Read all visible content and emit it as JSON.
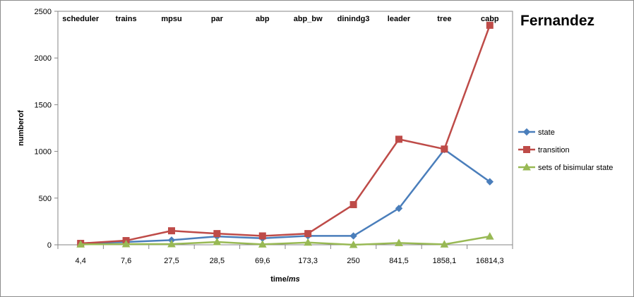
{
  "chart_data": {
    "type": "line",
    "title": "Fernandez",
    "xlabel_main": "time/",
    "xlabel_unit": "ms",
    "ylabel": "numberof",
    "categories": [
      "4,4",
      "7,6",
      "27,5",
      "28,5",
      "69,6",
      "173,3",
      "250",
      "841,5",
      "1858,1",
      "16814,3"
    ],
    "top_labels": [
      "scheduler",
      "trains",
      "mpsu",
      "par",
      "abp",
      "abp_bw",
      "dinindg3",
      "leader",
      "tree",
      "cabp"
    ],
    "ylim": [
      0,
      2500
    ],
    "yticks": [
      "0",
      "500",
      "1000",
      "1500",
      "2000",
      "2500"
    ],
    "grid": false,
    "legend_position": "right",
    "series": [
      {
        "name": "state",
        "color": "#4a7ebb",
        "marker": "diamond",
        "values": [
          15,
          30,
          50,
          90,
          70,
          95,
          95,
          390,
          1020,
          675
        ]
      },
      {
        "name": "transition",
        "color": "#be4b48",
        "marker": "square",
        "values": [
          15,
          45,
          150,
          120,
          95,
          120,
          430,
          1130,
          1025,
          2350
        ]
      },
      {
        "name": "sets of bisimular state",
        "color": "#98b954",
        "marker": "triangle",
        "values": [
          5,
          8,
          8,
          30,
          5,
          25,
          0,
          20,
          5,
          90
        ]
      }
    ]
  }
}
